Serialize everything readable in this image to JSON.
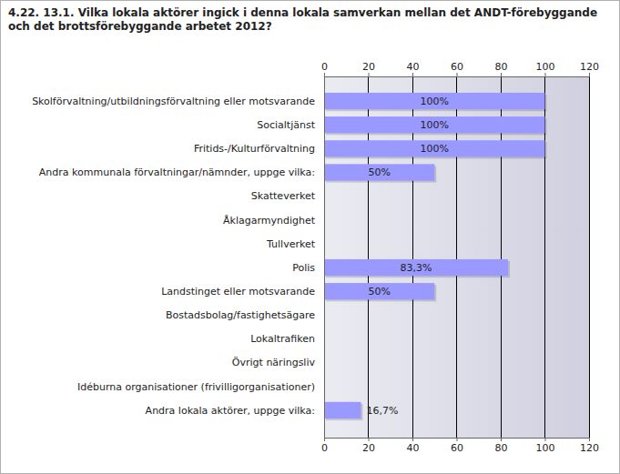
{
  "chart_data": {
    "type": "bar",
    "title": "4.22. 13.1. Vilka lokala aktörer ingick i denna lokala samverkan mellan det ANDT-förebyggande och det brottsförebyggande arbetet 2012?",
    "categories": [
      "Skolförvaltning/utbildningsförvaltning eller motsvarande",
      "Socialtjänst",
      "Fritids-/Kulturförvaltning",
      "Andra kommunala förvaltningar/nämnder, uppge vilka:",
      "Skatteverket",
      "Åklagarmyndighet",
      "Tullverket",
      "Polis",
      "Landstinget eller motsvarande",
      "Bostadsbolag/fastighetsägare",
      "Lokaltrafiken",
      "Övrigt näringsliv",
      "Idéburna organisationer (frivilligorganisationer)",
      "Andra lokala aktörer, uppge vilka:"
    ],
    "values": [
      100,
      100,
      100,
      50,
      0,
      0,
      0,
      83.3,
      50,
      0,
      0,
      0,
      0,
      16.7
    ],
    "value_labels": [
      "100%",
      "100%",
      "100%",
      "50%",
      null,
      null,
      null,
      "83,3%",
      "50%",
      null,
      null,
      null,
      null,
      "16,7%"
    ],
    "color": "#9999ff",
    "orientation": "horizontal",
    "xlim": [
      0,
      120
    ],
    "xticks": [
      0,
      20,
      40,
      60,
      80,
      100,
      120
    ],
    "grid": true,
    "data_labels": true
  }
}
